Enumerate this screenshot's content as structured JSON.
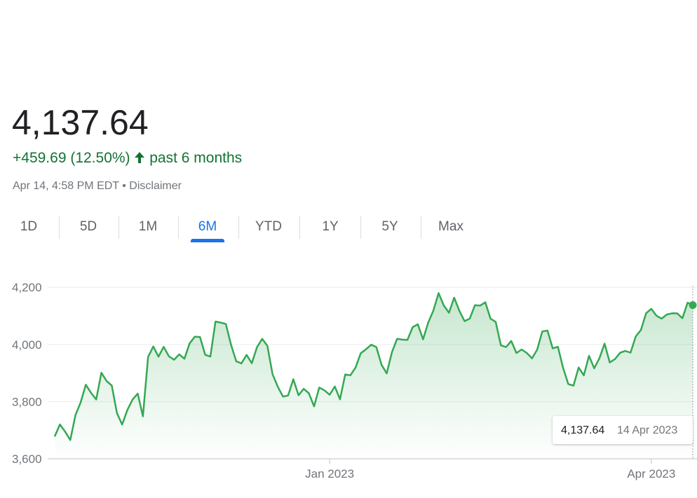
{
  "header": {
    "price": "4,137.64",
    "change": "+459.69 (12.50%)",
    "period": "past 6 months",
    "timestamp": "Apr 14, 4:58 PM EDT",
    "disclaimer": "Disclaimer"
  },
  "ranges": [
    "1D",
    "5D",
    "1M",
    "6M",
    "YTD",
    "1Y",
    "5Y",
    "Max"
  ],
  "selected_range": 3,
  "chart_data": {
    "type": "line",
    "color": "#34a853",
    "ylim": [
      3600,
      4225
    ],
    "yticks": [
      {
        "value": 3600,
        "label": "3,600"
      },
      {
        "value": 3800,
        "label": "3,800"
      },
      {
        "value": 4000,
        "label": "4,000"
      },
      {
        "value": 4200,
        "label": "4,200"
      }
    ],
    "grid": true,
    "categories": [
      null,
      null,
      null,
      null,
      null,
      null,
      null,
      null,
      null,
      null,
      null,
      null,
      null,
      null,
      null,
      null,
      null,
      null,
      null,
      null,
      null,
      null,
      null,
      null,
      null,
      null,
      null,
      null,
      null,
      null,
      null,
      null,
      null,
      null,
      null,
      null,
      null,
      null,
      null,
      null,
      null,
      null,
      null,
      null,
      null,
      null,
      null,
      null,
      null,
      null,
      null,
      null,
      null,
      "Jan 2023",
      null,
      null,
      null,
      null,
      null,
      null,
      null,
      null,
      null,
      null,
      null,
      null,
      null,
      null,
      null,
      null,
      null,
      null,
      null,
      null,
      null,
      null,
      null,
      null,
      null,
      null,
      null,
      null,
      null,
      null,
      null,
      null,
      null,
      null,
      null,
      null,
      null,
      null,
      null,
      null,
      null,
      null,
      null,
      null,
      null,
      null,
      null,
      null,
      null,
      null,
      null,
      null,
      null,
      null,
      null,
      null,
      null,
      null,
      null,
      null,
      null,
      "Apr 2023",
      null,
      null,
      null,
      null,
      null,
      null,
      null,
      null
    ],
    "values": [
      3677.95,
      3719.98,
      3695.16,
      3665.78,
      3752.75,
      3797.34,
      3859.11,
      3830.6,
      3807.3,
      3901.06,
      3871.98,
      3856.1,
      3759.69,
      3719.89,
      3770.55,
      3806.8,
      3828.11,
      3748.57,
      3956.37,
      3992.93,
      3957.25,
      3991.73,
      3958.79,
      3946.56,
      3965.34,
      3949.94,
      4003.58,
      4027.26,
      4026.12,
      3963.94,
      3957.63,
      4080.11,
      4076.57,
      4071.7,
      3998.84,
      3941.26,
      3933.92,
      3963.51,
      3934.38,
      3990.56,
      4019.65,
      3995.32,
      3895.75,
      3852.36,
      3817.66,
      3821.62,
      3878.44,
      3822.39,
      3844.82,
      3829.25,
      3783.22,
      3849.28,
      3839.5,
      3824.14,
      3852.97,
      3808.1,
      3895.08,
      3892.09,
      3919.25,
      3969.61,
      3983.17,
      3999.09,
      3990.97,
      3928.86,
      3898.85,
      3972.61,
      4019.81,
      4016.95,
      4016.22,
      4060.43,
      4070.56,
      4017.77,
      4076.6,
      4119.21,
      4179.76,
      4136.48,
      4111.08,
      4164,
      4117.86,
      4081.5,
      4090.46,
      4137.29,
      4136.13,
      4147.6,
      4090.41,
      4079.09,
      3997.34,
      3991.05,
      4012.32,
      3970.04,
      3982.24,
      3970.15,
      3951.39,
      3981.35,
      4045.64,
      4048.42,
      3986.37,
      3992.01,
      3918.32,
      3861.59,
      3855.76,
      3919.29,
      3891.93,
      3960.28,
      3916.64,
      3951.57,
      4002.87,
      3936.97,
      3948.72,
      3970.99,
      3977.53,
      3971.27,
      4027.81,
      4050.83,
      4109.31,
      4124.51,
      4100.6,
      4090.38,
      4105.02,
      4109.11,
      4108.94,
      4091.95,
      4146.22,
      4137.64
    ],
    "tooltip": {
      "value": "4,137.64",
      "date": "14 Apr 2023"
    }
  }
}
